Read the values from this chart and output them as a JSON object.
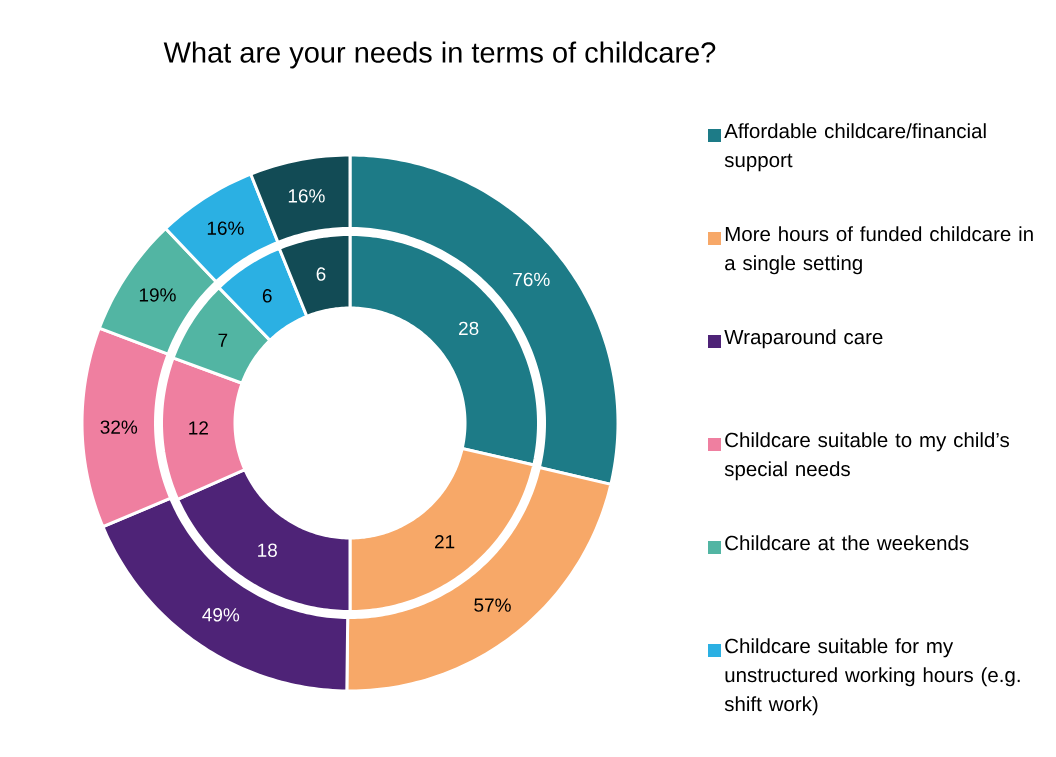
{
  "chart_data": {
    "type": "donut",
    "title": "What are your needs in terms of childcare?",
    "categories": [
      "Affordable childcare/financial support",
      "More hours of funded childcare in a single setting",
      "Wraparound care",
      "Childcare suitable to my child’s special needs",
      "Childcare at the weekends",
      "Childcare suitable for my unstructured working hours (e.g. shift work)",
      null
    ],
    "colors": [
      "#1d7b87",
      "#f7a868",
      "#4e2377",
      "#ef7fa0",
      "#52b5a3",
      "#2bb0e3",
      "#124b55"
    ],
    "series": [
      {
        "values": [
          28,
          21,
          18,
          12,
          7,
          6,
          6
        ],
        "value_labels": [
          "28",
          "21",
          "18",
          "12",
          "7",
          "6",
          "6"
        ]
      },
      {
        "values": [
          76,
          57,
          49,
          32,
          19,
          16,
          16
        ],
        "value_labels": [
          "76%",
          "57%",
          "49%",
          "32%",
          "19%",
          "16%",
          "16%"
        ]
      }
    ],
    "legend": "right"
  }
}
